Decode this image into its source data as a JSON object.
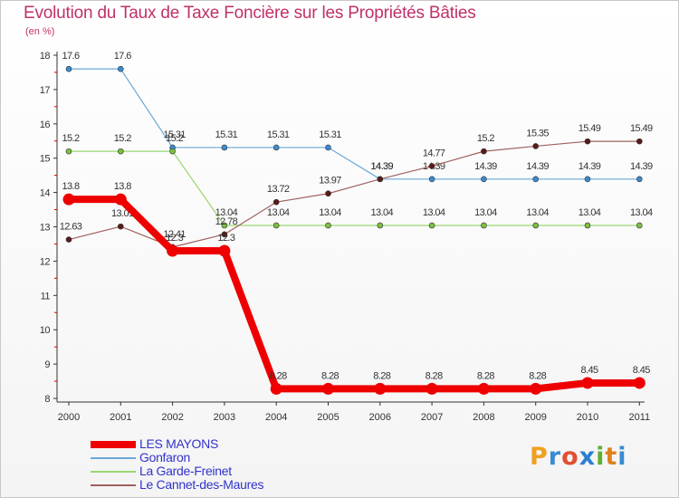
{
  "title": "Evolution du Taux de Taxe Foncière sur les Propriétés Bâties",
  "unit": "(en %)",
  "logo": {
    "letters": [
      "P",
      "r",
      "o",
      "x",
      "i",
      "t",
      "i"
    ],
    "colors": [
      "#f0a020",
      "#3a8ad0",
      "#e05030",
      "#2a80d0",
      "#60b030",
      "#e08020",
      "#3a8ad0"
    ]
  },
  "chart_data": {
    "type": "line",
    "categories": [
      "2000",
      "2001",
      "2002",
      "2003",
      "2004",
      "2005",
      "2006",
      "2007",
      "2008",
      "2009",
      "2010",
      "2011"
    ],
    "ylim": [
      8,
      18
    ],
    "yticks": [
      "8",
      "9",
      "10",
      "11",
      "12",
      "13",
      "14",
      "15",
      "16",
      "17",
      "18"
    ],
    "grid": false,
    "legend_position": "bottom-left",
    "series": [
      {
        "name": "Gonfaron",
        "color": "#6aa8d8",
        "marker": "#3a8ad0",
        "values": [
          17.6,
          17.6,
          15.31,
          15.31,
          15.31,
          15.31,
          14.39,
          14.39,
          14.39,
          14.39,
          14.39,
          14.39
        ],
        "labels": [
          "17.6",
          "17.6",
          "15.31",
          "15.31",
          "15.31",
          "15.31",
          "14.39",
          "14.39",
          "14.39",
          "14.39",
          "14.39",
          "14.39"
        ]
      },
      {
        "name": "La Garde-Freinet",
        "color": "#9ad870",
        "marker": "#7ac040",
        "values": [
          15.2,
          15.2,
          15.2,
          13.04,
          13.04,
          13.04,
          13.04,
          13.04,
          13.04,
          13.04,
          13.04,
          13.04
        ],
        "labels": [
          "15.2",
          "15.2",
          "15.2",
          "13.04",
          "13.04",
          "13.04",
          "13.04",
          "13.04",
          "13.04",
          "13.04",
          "13.04",
          "13.04"
        ]
      },
      {
        "name": "Le Cannet-des-Maures",
        "color": "#a06060",
        "marker": "#5a1a1a",
        "values": [
          12.63,
          13.01,
          12.41,
          12.78,
          13.72,
          13.97,
          14.39,
          14.77,
          15.2,
          15.35,
          15.49,
          15.49
        ],
        "labels": [
          "12.63",
          "13.01",
          "12.41",
          "12.78",
          "13.72",
          "13.97",
          "14.39",
          "14.77",
          "15.2",
          "15.35",
          "15.49",
          "15.49"
        ]
      },
      {
        "name": "LES MAYONS",
        "color": "#ee0000",
        "marker": "#ee0000",
        "values": [
          13.8,
          13.8,
          12.3,
          12.3,
          8.28,
          8.28,
          8.28,
          8.28,
          8.28,
          8.28,
          8.45,
          8.45
        ],
        "labels": [
          "13.8",
          "13.8",
          "12.3",
          "12.3",
          "8.28",
          "8.28",
          "8.28",
          "8.28",
          "8.28",
          "8.28",
          "8.45",
          "8.45"
        ]
      }
    ],
    "legend": [
      {
        "name": "LES MAYONS",
        "color": "#ee0000",
        "text_color": "#3333cc"
      },
      {
        "name": "Gonfaron",
        "color": "#6aa8d8",
        "text_color": "#3333cc"
      },
      {
        "name": "La Garde-Freinet",
        "color": "#9ad870",
        "text_color": "#3333cc"
      },
      {
        "name": "Le Cannet-des-Maures",
        "color": "#a06060",
        "text_color": "#3333cc"
      }
    ]
  }
}
